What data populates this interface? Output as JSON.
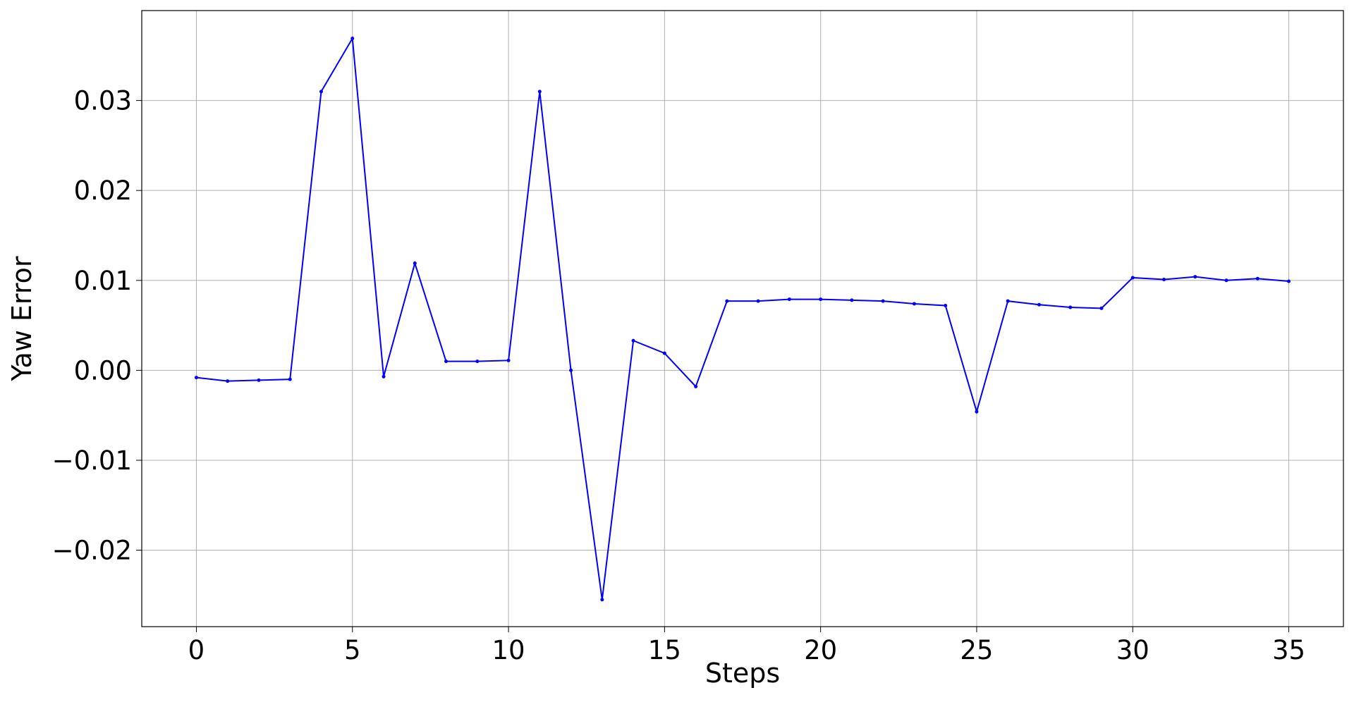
{
  "chart_data": {
    "type": "line",
    "x_label": "Steps",
    "y_label": "Yaw Error",
    "x": [
      0,
      1,
      2,
      3,
      4,
      5,
      6,
      7,
      8,
      9,
      10,
      11,
      12,
      13,
      14,
      15,
      16,
      17,
      18,
      19,
      20,
      21,
      22,
      23,
      24,
      25,
      26,
      27,
      28,
      29,
      30,
      31,
      32,
      33,
      34,
      35
    ],
    "series": [
      {
        "color": "#0000ff",
        "values": [
          -0.0008,
          -0.0012,
          -0.0011,
          -0.001,
          0.031,
          0.0369,
          -0.0007,
          0.0119,
          0.001,
          0.001,
          0.0011,
          0.031,
          0.0,
          -0.0255,
          0.0033,
          0.0019,
          -0.0018,
          0.0077,
          0.0077,
          0.0079,
          0.0079,
          0.0078,
          0.0077,
          0.0074,
          0.0072,
          -0.0046,
          0.0077,
          0.0073,
          0.007,
          0.0069,
          0.0103,
          0.0101,
          0.0104,
          0.01,
          0.0102,
          0.0099
        ]
      }
    ],
    "xlim": [
      -1.75,
      36.75
    ],
    "xticks": [
      0,
      5,
      10,
      15,
      20,
      25,
      30,
      35
    ],
    "ylim": [
      -0.0285,
      0.04
    ],
    "yticks": [
      {
        "value": -0.02,
        "label": "−0.02"
      },
      {
        "value": -0.01,
        "label": "−0.01"
      },
      {
        "value": 0,
        "label": "0.00"
      },
      0.01,
      0.02,
      0.03
    ],
    "grid": true
  }
}
